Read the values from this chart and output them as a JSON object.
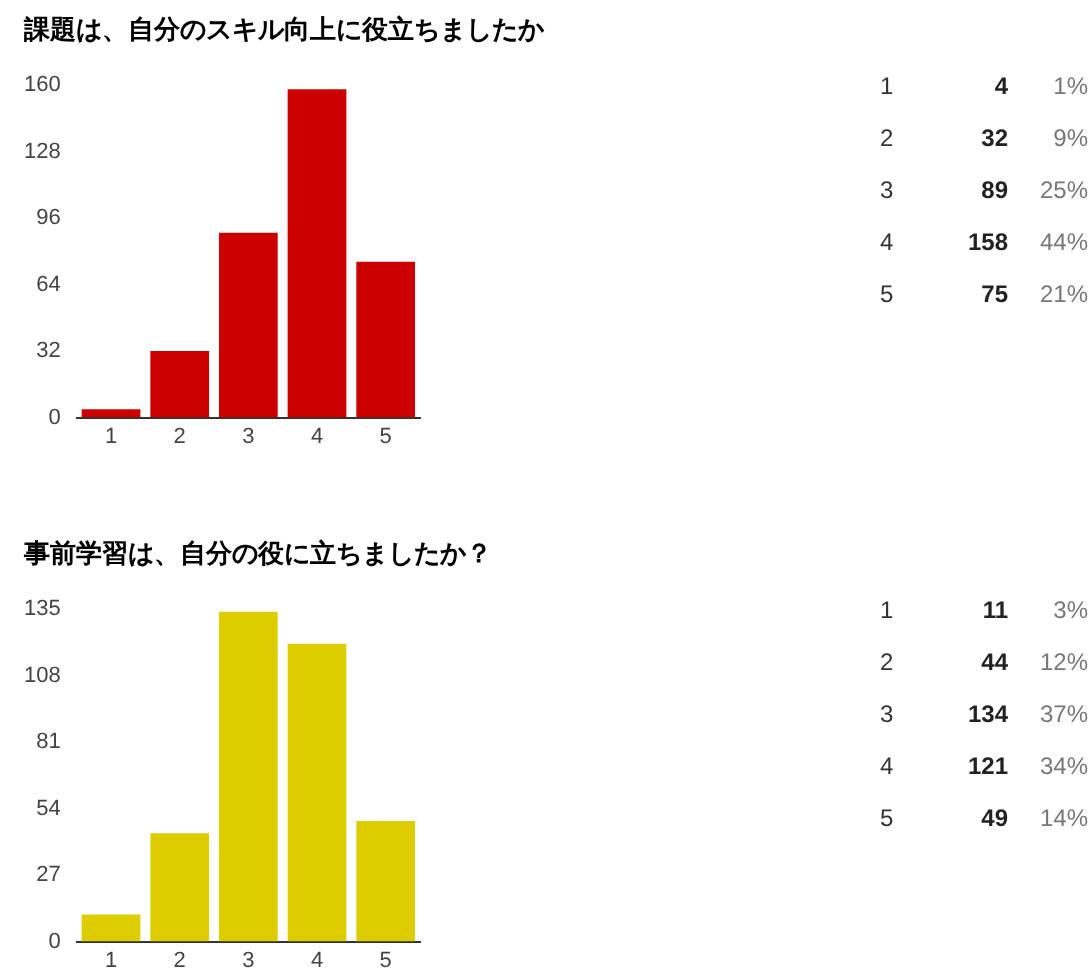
{
  "chart_data": [
    {
      "type": "bar",
      "title": "課題は、自分のスキル向上に役立ちましたか",
      "categories": [
        "1",
        "2",
        "3",
        "4",
        "5"
      ],
      "values": [
        4,
        32,
        89,
        158,
        75
      ],
      "color": "#cc0000",
      "ylim": [
        0,
        160
      ],
      "yticks": [
        0,
        32,
        64,
        96,
        128,
        160
      ],
      "grid": false,
      "legend": false,
      "annotations": [
        "4",
        "1%",
        "32",
        "9%",
        "89",
        "25%",
        "158",
        "44%",
        "75",
        "21%"
      ]
    },
    {
      "type": "bar",
      "title": "事前学習は、自分の役に立ちましたか？",
      "categories": [
        "1",
        "2",
        "3",
        "4",
        "5"
      ],
      "values": [
        11,
        44,
        134,
        121,
        49
      ],
      "color": "#ddcc00",
      "ylim": [
        0,
        135
      ],
      "yticks": [
        0,
        27,
        54,
        81,
        108,
        135
      ],
      "grid": false,
      "legend": false,
      "annotations": [
        "11",
        "3%",
        "44",
        "12%",
        "134",
        "37%",
        "121",
        "34%",
        "49",
        "14%"
      ]
    }
  ]
}
